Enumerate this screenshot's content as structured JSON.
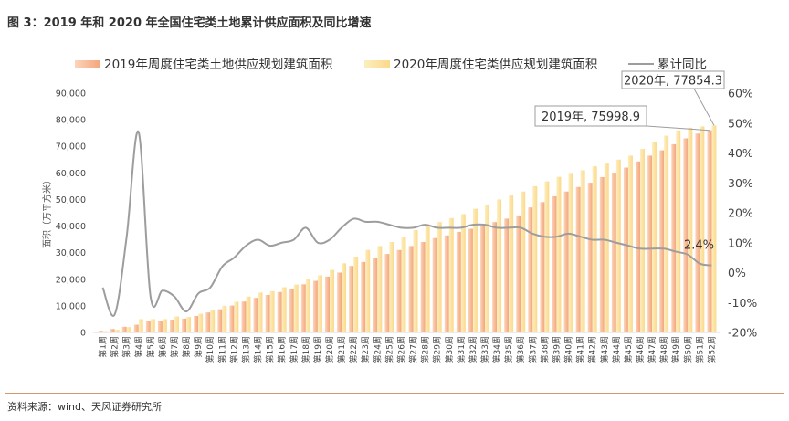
{
  "figure": {
    "title": "图 3：2019 年和 2020 年全国住宅类土地累计供应面积及同比增速",
    "source": "资料来源：wind、天风证券研究所"
  },
  "chart_data": {
    "type": "bar",
    "title": "图 3：2019 年和 2020 年全国住宅类土地累计供应面积及同比增速",
    "categories": [
      "第1周",
      "第2周",
      "第3周",
      "第4周",
      "第5周",
      "第6周",
      "第7周",
      "第8周",
      "第9周",
      "第10周",
      "第11周",
      "第12周",
      "第13周",
      "第14周",
      "第15周",
      "第16周",
      "第17周",
      "第18周",
      "第19周",
      "第20周",
      "第21周",
      "第22周",
      "第23周",
      "第24周",
      "第25周",
      "第26周",
      "第27周",
      "第28周",
      "第29周",
      "第30周",
      "第31周",
      "第32周",
      "第33周",
      "第34周",
      "第35周",
      "第36周",
      "第37周",
      "第38周",
      "第39周",
      "第40周",
      "第41周",
      "第42周",
      "第43周",
      "第44周",
      "第45周",
      "第46周",
      "第47周",
      "第48周",
      "第49周",
      "第50周",
      "第51周",
      "第52周"
    ],
    "ylabel": "面积（万平方米）",
    "ylim": [
      0,
      90000
    ],
    "y_ticks": [
      "0",
      "10,000",
      "20,000",
      "30,000",
      "40,000",
      "50,000",
      "60,000",
      "70,000",
      "80,000",
      "90,000"
    ],
    "y2lim": [
      -20,
      60
    ],
    "y2_ticks": [
      "-20%",
      "-10%",
      "0%",
      "10%",
      "20%",
      "30%",
      "40%",
      "50%",
      "60%"
    ],
    "legend_position": "top",
    "series": [
      {
        "name": "2019年周度住宅类土地供应规划建筑面积",
        "axis": "left",
        "color": "#f4a57a",
        "values": [
          600,
          1300,
          2100,
          2900,
          4300,
          4400,
          4800,
          5200,
          6200,
          7500,
          8700,
          10100,
          11600,
          13000,
          14100,
          15200,
          16500,
          18100,
          19400,
          21000,
          22500,
          25000,
          26500,
          28000,
          29500,
          31000,
          32500,
          34000,
          35500,
          36500,
          37800,
          39000,
          40200,
          41500,
          42800,
          44000,
          47000,
          49000,
          51200,
          53000,
          54700,
          56300,
          58400,
          60100,
          62000,
          64300,
          66500,
          68500,
          70800,
          73000,
          74800,
          75998.9
        ]
      },
      {
        "name": "2020年周度住宅类供应规划建筑面积",
        "axis": "left",
        "color": "#fbdc8d",
        "values": [
          500,
          1000,
          2000,
          5000,
          5000,
          5000,
          6000,
          5800,
          7000,
          8500,
          10000,
          11500,
          13500,
          15000,
          15500,
          17000,
          18000,
          20000,
          21500,
          23500,
          26000,
          28500,
          31000,
          32500,
          34000,
          36000,
          38500,
          40000,
          41500,
          43000,
          44500,
          46500,
          48000,
          50000,
          51500,
          53000,
          55000,
          56800,
          58500,
          60000,
          61000,
          62500,
          63500,
          65000,
          66500,
          69000,
          71500,
          74000,
          76000,
          77000,
          77500,
          77854.3
        ]
      },
      {
        "name": "累计同比",
        "axis": "right",
        "color": "#9d9d9d",
        "values": [
          -5,
          -14,
          12,
          47,
          -8,
          -6,
          -8,
          -13,
          -7,
          -5,
          2,
          5,
          9,
          11,
          9,
          10,
          11,
          15,
          10,
          11,
          15,
          18,
          17,
          17,
          16,
          15,
          15,
          16,
          15,
          15,
          15,
          16,
          16,
          15,
          15,
          15,
          13,
          12,
          12,
          13,
          12,
          11,
          11,
          10,
          9,
          8,
          8,
          8,
          7,
          6,
          3,
          2.4
        ]
      }
    ],
    "annotations": [
      {
        "text": "2019年, 75998.9",
        "category": "第52周",
        "series": "2019年周度住宅类土地供应规划建筑面积"
      },
      {
        "text": "2020年, 77854.3",
        "category": "第52周",
        "series": "2020年周度住宅类供应规划建筑面积"
      },
      {
        "text": "2.4%",
        "category": "第52周",
        "series": "累计同比"
      }
    ]
  }
}
